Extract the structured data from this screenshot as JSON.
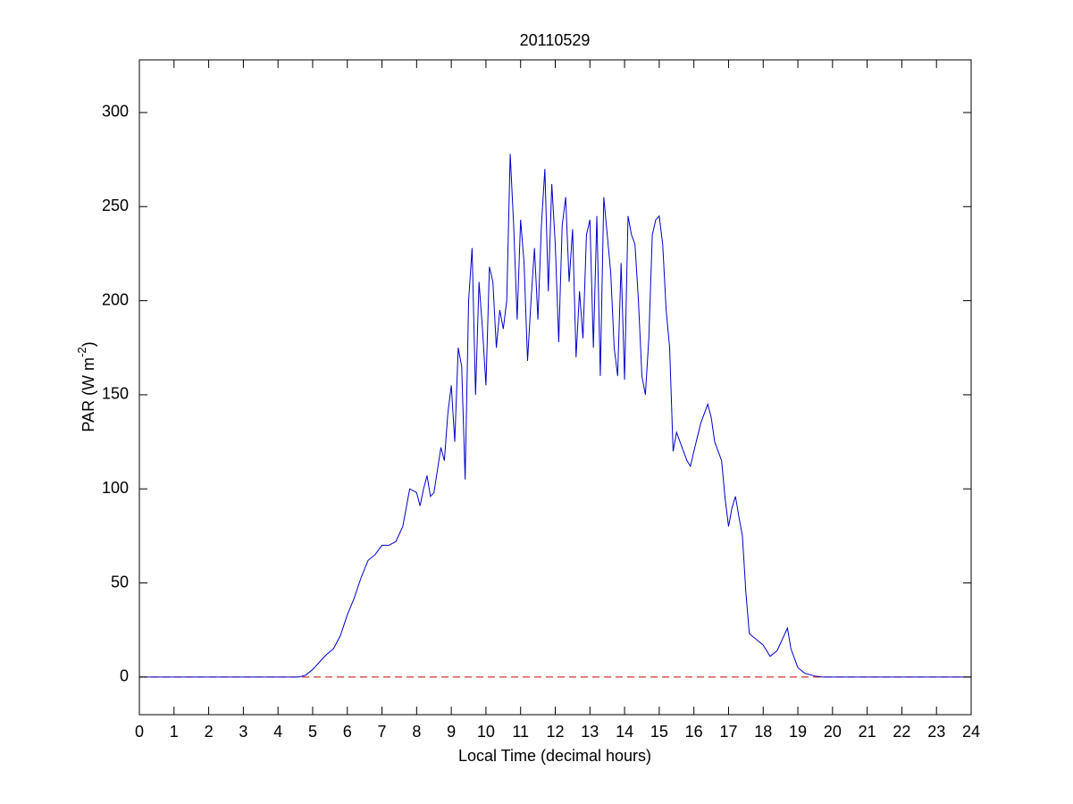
{
  "chart_data": {
    "type": "line",
    "title": "20110529",
    "x_label": "Local Time (decimal hours)",
    "y_label": {
      "text": "PAR (W m",
      "superscript": "-2",
      "close": ")"
    },
    "xlim": [
      0,
      24
    ],
    "xticks": [
      0,
      1,
      2,
      3,
      4,
      5,
      6,
      7,
      8,
      9,
      10,
      11,
      12,
      13,
      14,
      15,
      16,
      17,
      18,
      19,
      20,
      21,
      22,
      23,
      24
    ],
    "ylim": [
      -20,
      328
    ],
    "yticks": [
      0,
      50,
      100,
      150,
      200,
      250,
      300
    ],
    "reference_line": {
      "value": 0,
      "color": "#cc0000",
      "style": "dashed"
    },
    "series": [
      {
        "color": "#0000cc",
        "x": [
          0,
          4.6,
          4.8,
          5.0,
          5.2,
          5.4,
          5.6,
          5.8,
          6.0,
          6.2,
          6.4,
          6.6,
          6.8,
          7.0,
          7.2,
          7.4,
          7.6,
          7.8,
          8.0,
          8.1,
          8.2,
          8.3,
          8.4,
          8.5,
          8.6,
          8.7,
          8.8,
          8.9,
          9.0,
          9.1,
          9.2,
          9.3,
          9.4,
          9.5,
          9.6,
          9.7,
          9.8,
          9.9,
          10.0,
          10.1,
          10.2,
          10.3,
          10.4,
          10.5,
          10.6,
          10.7,
          10.8,
          10.9,
          11.0,
          11.1,
          11.2,
          11.3,
          11.4,
          11.5,
          11.6,
          11.7,
          11.8,
          11.9,
          12.0,
          12.1,
          12.2,
          12.3,
          12.4,
          12.5,
          12.6,
          12.7,
          12.8,
          12.9,
          13.0,
          13.1,
          13.2,
          13.3,
          13.4,
          13.5,
          13.6,
          13.7,
          13.8,
          13.9,
          14.0,
          14.1,
          14.2,
          14.3,
          14.4,
          14.5,
          14.6,
          14.7,
          14.8,
          14.9,
          15.0,
          15.1,
          15.2,
          15.3,
          15.4,
          15.5,
          15.6,
          15.8,
          15.9,
          16.0,
          16.2,
          16.4,
          16.5,
          16.6,
          16.8,
          16.9,
          17.0,
          17.1,
          17.2,
          17.3,
          17.4,
          17.5,
          17.6,
          17.8,
          18.0,
          18.2,
          18.4,
          18.6,
          18.7,
          18.8,
          19.0,
          19.2,
          19.5,
          19.7,
          24
        ],
        "values": [
          0,
          0,
          1,
          4,
          8,
          12,
          15,
          22,
          33,
          42,
          53,
          62,
          65,
          70,
          70,
          72,
          80,
          100,
          98,
          91,
          100,
          107,
          96,
          98,
          110,
          122,
          115,
          140,
          155,
          125,
          175,
          165,
          105,
          200,
          228,
          150,
          210,
          185,
          155,
          218,
          210,
          175,
          195,
          185,
          200,
          278,
          240,
          190,
          243,
          220,
          168,
          200,
          228,
          190,
          240,
          270,
          205,
          262,
          230,
          178,
          240,
          255,
          210,
          238,
          170,
          205,
          180,
          235,
          243,
          175,
          245,
          160,
          255,
          235,
          215,
          175,
          160,
          220,
          158,
          245,
          235,
          230,
          200,
          160,
          150,
          180,
          235,
          243,
          245,
          230,
          195,
          175,
          120,
          130,
          125,
          115,
          112,
          120,
          135,
          145,
          138,
          125,
          115,
          95,
          80,
          90,
          96,
          85,
          75,
          45,
          23,
          20,
          17,
          11,
          14,
          22,
          26,
          15,
          5,
          2,
          0.5,
          0,
          0
        ]
      }
    ]
  }
}
